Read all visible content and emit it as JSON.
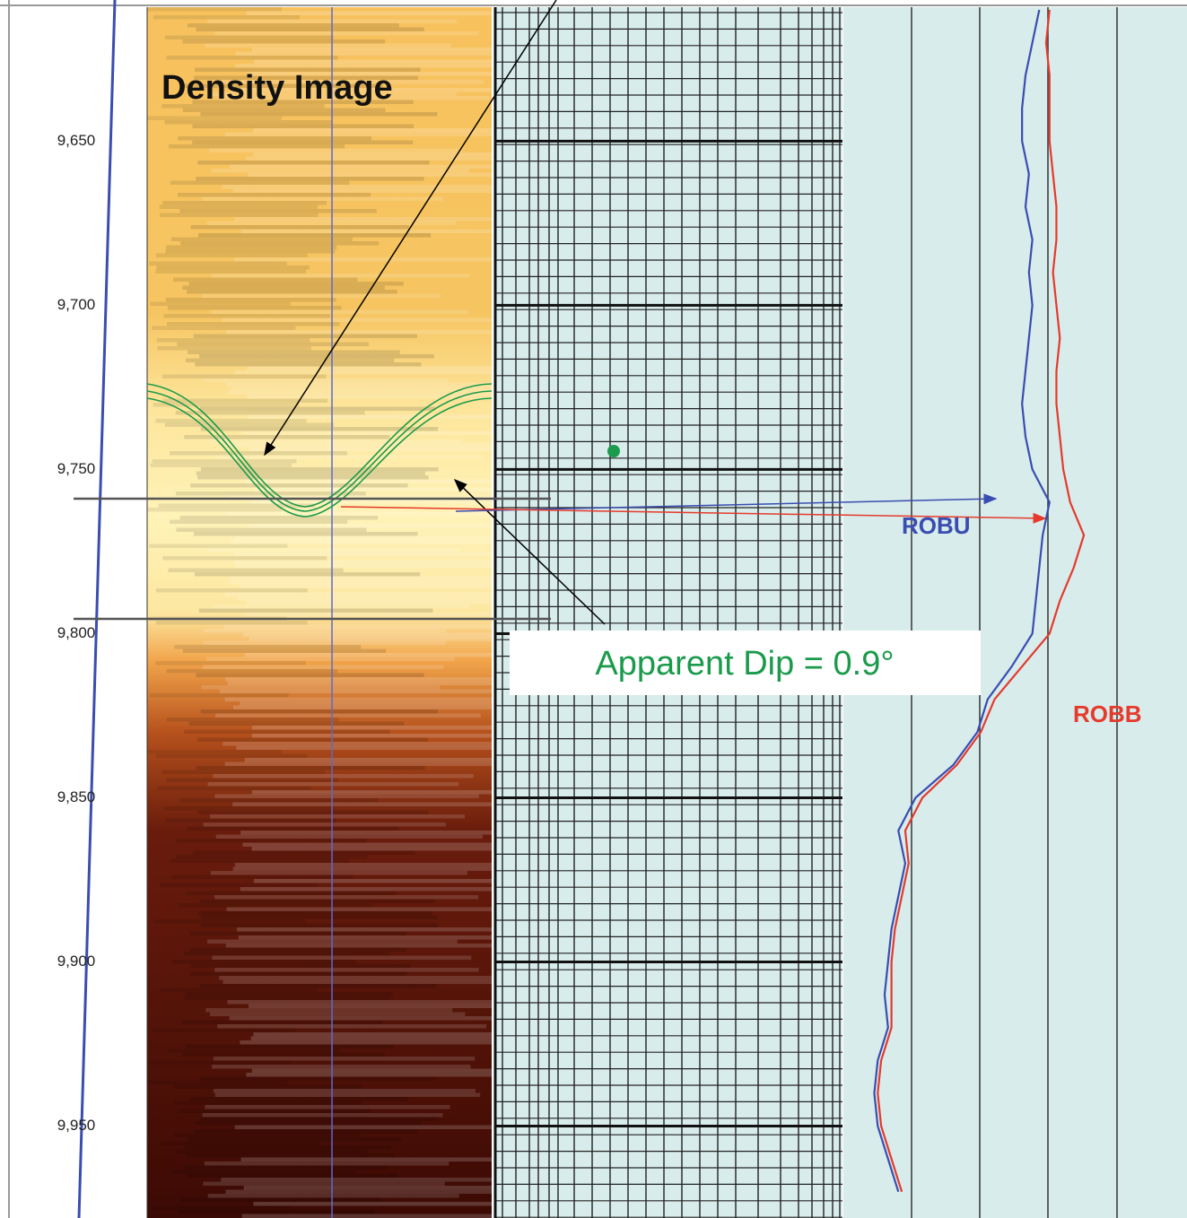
{
  "chart_data": {
    "type": "well-log",
    "title": "Density Image",
    "annotation": "Apparent Dip = 0.9°",
    "ylim": [
      9607,
      9978
    ],
    "yticks": [
      {
        "value": 9650,
        "label": "9,650"
      },
      {
        "value": 9700,
        "label": "9,700"
      },
      {
        "value": 9750,
        "label": "9,750"
      },
      {
        "value": 9800,
        "label": "9,800"
      },
      {
        "value": 9850,
        "label": "9,850"
      },
      {
        "value": 9900,
        "label": "9,900"
      },
      {
        "value": 9950,
        "label": "9,950"
      }
    ],
    "xlim": [
      0,
      1
    ],
    "x": [
      9610,
      9620,
      9630,
      9640,
      9650,
      9660,
      9670,
      9680,
      9690,
      9700,
      9710,
      9720,
      9730,
      9740,
      9750,
      9760,
      9770,
      9780,
      9790,
      9800,
      9810,
      9820,
      9830,
      9840,
      9850,
      9860,
      9870,
      9880,
      9890,
      9900,
      9910,
      9920,
      9930,
      9940,
      9950,
      9960,
      9970
    ],
    "series": [
      {
        "name": "ROBU",
        "color": "#3a4db0",
        "values": [
          0.57,
          0.55,
          0.53,
          0.52,
          0.52,
          0.54,
          0.53,
          0.55,
          0.54,
          0.55,
          0.54,
          0.53,
          0.52,
          0.53,
          0.55,
          0.6,
          0.58,
          0.57,
          0.56,
          0.55,
          0.49,
          0.42,
          0.39,
          0.32,
          0.21,
          0.16,
          0.18,
          0.16,
          0.14,
          0.13,
          0.12,
          0.13,
          0.1,
          0.09,
          0.1,
          0.13,
          0.16
        ]
      },
      {
        "name": "ROBB",
        "color": "#e53a2c",
        "values": [
          0.6,
          0.59,
          0.6,
          0.6,
          0.6,
          0.61,
          0.62,
          0.62,
          0.61,
          0.62,
          0.63,
          0.62,
          0.62,
          0.63,
          0.64,
          0.66,
          0.7,
          0.67,
          0.63,
          0.6,
          0.52,
          0.44,
          0.4,
          0.33,
          0.23,
          0.18,
          0.19,
          0.17,
          0.15,
          0.14,
          0.14,
          0.14,
          0.11,
          0.1,
          0.11,
          0.14,
          0.17
        ]
      }
    ]
  }
}
